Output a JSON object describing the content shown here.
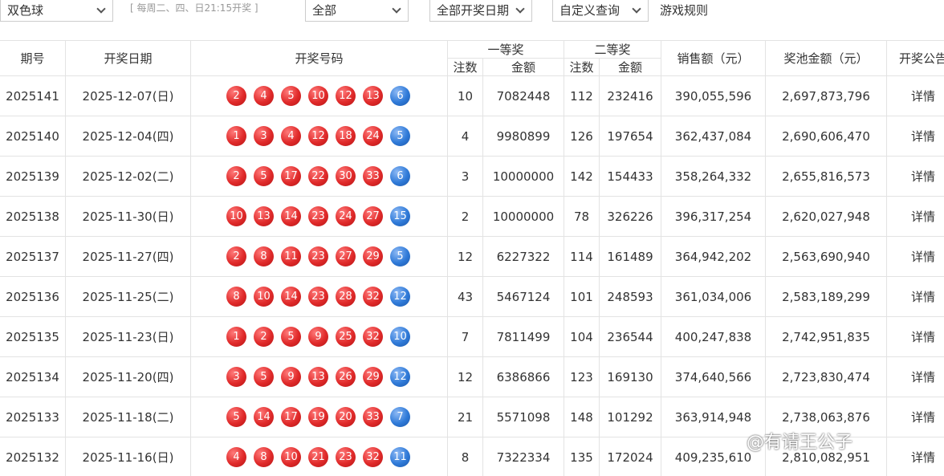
{
  "toolbar": {
    "lottery_select": "双色球",
    "schedule_note": "[ 每周二、四、日21:15开奖 ]",
    "range_select": "全部",
    "date_select": "全部开奖日期",
    "custom_query": "自定义查询",
    "rules_link": "游戏规则"
  },
  "table": {
    "headers": {
      "issue": "期号",
      "date": "开奖日期",
      "numbers": "开奖号码",
      "first_prize": "一等奖",
      "second_prize": "二等奖",
      "sub": [
        "注数",
        "金额",
        "注数",
        "金额"
      ],
      "sales": "销售额（元）",
      "pool": "奖池金额（元）",
      "notice": "开奖公告"
    },
    "rows": [
      {
        "issue": "2025141",
        "date": "2025-12-07(日)",
        "red": [
          "2",
          "4",
          "5",
          "10",
          "12",
          "13"
        ],
        "blue": "6",
        "first_count": "10",
        "first_amount": "7082448",
        "second_count": "112",
        "second_amount": "232416",
        "sales": "390,055,596",
        "pool": "2,697,873,796",
        "notice": "详情"
      },
      {
        "issue": "2025140",
        "date": "2025-12-04(四)",
        "red": [
          "1",
          "3",
          "4",
          "12",
          "18",
          "24"
        ],
        "blue": "5",
        "first_count": "4",
        "first_amount": "9980899",
        "second_count": "126",
        "second_amount": "197654",
        "sales": "362,437,084",
        "pool": "2,690,606,470",
        "notice": "详情"
      },
      {
        "issue": "2025139",
        "date": "2025-12-02(二)",
        "red": [
          "2",
          "5",
          "17",
          "22",
          "30",
          "33"
        ],
        "blue": "6",
        "first_count": "3",
        "first_amount": "10000000",
        "second_count": "142",
        "second_amount": "154433",
        "sales": "358,264,332",
        "pool": "2,655,816,573",
        "notice": "详情"
      },
      {
        "issue": "2025138",
        "date": "2025-11-30(日)",
        "red": [
          "10",
          "13",
          "14",
          "23",
          "24",
          "27"
        ],
        "blue": "15",
        "first_count": "2",
        "first_amount": "10000000",
        "second_count": "78",
        "second_amount": "326226",
        "sales": "396,317,254",
        "pool": "2,620,027,948",
        "notice": "详情"
      },
      {
        "issue": "2025137",
        "date": "2025-11-27(四)",
        "red": [
          "2",
          "8",
          "11",
          "23",
          "27",
          "29"
        ],
        "blue": "5",
        "first_count": "12",
        "first_amount": "6227322",
        "second_count": "114",
        "second_amount": "161489",
        "sales": "364,942,202",
        "pool": "2,563,690,940",
        "notice": "详情"
      },
      {
        "issue": "2025136",
        "date": "2025-11-25(二)",
        "red": [
          "8",
          "10",
          "14",
          "23",
          "28",
          "32"
        ],
        "blue": "12",
        "first_count": "43",
        "first_amount": "5467124",
        "second_count": "101",
        "second_amount": "248593",
        "sales": "361,034,006",
        "pool": "2,583,189,299",
        "notice": "详情"
      },
      {
        "issue": "2025135",
        "date": "2025-11-23(日)",
        "red": [
          "1",
          "2",
          "5",
          "9",
          "25",
          "32"
        ],
        "blue": "10",
        "first_count": "7",
        "first_amount": "7811499",
        "second_count": "104",
        "second_amount": "236544",
        "sales": "400,247,838",
        "pool": "2,742,951,835",
        "notice": "详情"
      },
      {
        "issue": "2025134",
        "date": "2025-11-20(四)",
        "red": [
          "3",
          "5",
          "9",
          "13",
          "26",
          "29"
        ],
        "blue": "12",
        "first_count": "12",
        "first_amount": "6386866",
        "second_count": "123",
        "second_amount": "169130",
        "sales": "374,640,566",
        "pool": "2,723,830,474",
        "notice": "详情"
      },
      {
        "issue": "2025133",
        "date": "2025-11-18(二)",
        "red": [
          "5",
          "14",
          "17",
          "19",
          "20",
          "33"
        ],
        "blue": "7",
        "first_count": "21",
        "first_amount": "5571098",
        "second_count": "148",
        "second_amount": "101292",
        "sales": "363,914,948",
        "pool": "2,738,063,876",
        "notice": "详情"
      },
      {
        "issue": "2025132",
        "date": "2025-11-16(日)",
        "red": [
          "4",
          "8",
          "10",
          "21",
          "23",
          "32"
        ],
        "blue": "11",
        "first_count": "8",
        "first_amount": "7322334",
        "second_count": "135",
        "second_amount": "172024",
        "sales": "409,235,610",
        "pool": "2,810,082,951",
        "notice": "详情"
      }
    ]
  },
  "watermark": "@有请王公子"
}
